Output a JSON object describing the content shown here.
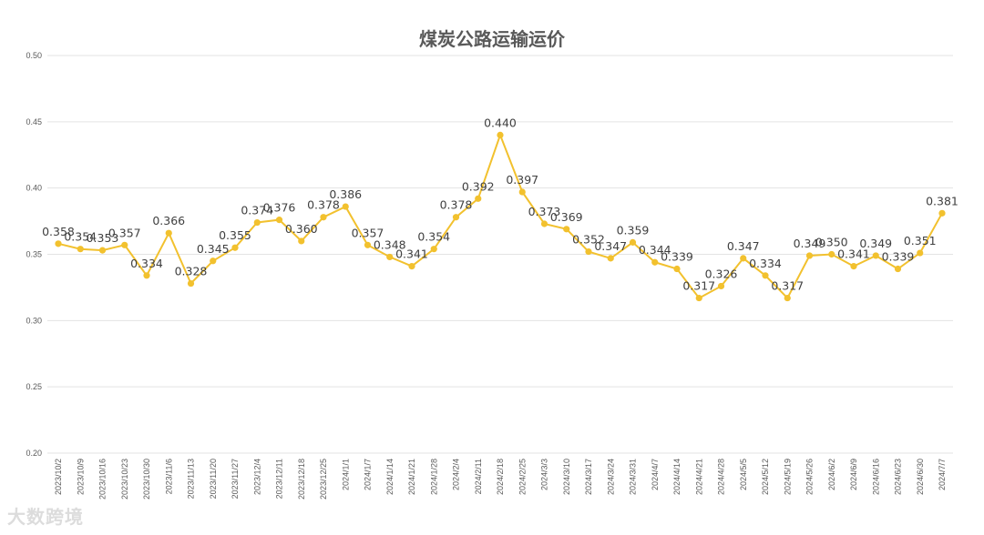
{
  "watermark": "大数跨境",
  "chart_data": {
    "type": "line",
    "title": "煤炭公路运输运价",
    "xlabel": "",
    "ylabel": "",
    "ylim": [
      0.2,
      0.5
    ],
    "yticks": [
      "0.20",
      "0.25",
      "0.30",
      "0.35",
      "0.40",
      "0.45",
      "0.50"
    ],
    "grid": true,
    "legend": "none",
    "colors": {
      "line": "#f2c12e",
      "marker": "#f2c12e",
      "grid": "#e3e3e3",
      "text": "#595959"
    },
    "categories": [
      "2023/10/2",
      "2023/10/9",
      "2023/10/16",
      "2023/10/23",
      "2023/10/30",
      "2023/11/6",
      "2023/11/13",
      "2023/11/20",
      "2023/11/27",
      "2023/12/4",
      "2023/12/11",
      "2023/12/18",
      "2023/12/25",
      "2024/1/1",
      "2024/1/7",
      "2024/1/14",
      "2024/1/21",
      "2024/1/28",
      "2024/2/4",
      "2024/2/11",
      "2024/2/18",
      "2024/2/25",
      "2024/3/3",
      "2024/3/10",
      "2024/3/17",
      "2024/3/24",
      "2024/3/31",
      "2024/4/7",
      "2024/4/14",
      "2024/4/21",
      "2024/4/28",
      "2024/5/5",
      "2024/5/12",
      "2024/5/19",
      "2024/5/26",
      "2024/6/2",
      "2024/6/9",
      "2024/6/16",
      "2024/6/23",
      "2024/6/30",
      "2024/7/7"
    ],
    "values": [
      0.358,
      0.354,
      0.353,
      0.357,
      0.334,
      0.366,
      0.328,
      0.345,
      0.355,
      0.374,
      0.376,
      0.36,
      0.378,
      0.386,
      0.357,
      0.348,
      0.341,
      0.354,
      0.378,
      0.392,
      0.44,
      0.397,
      0.373,
      0.369,
      0.352,
      0.347,
      0.359,
      0.344,
      0.339,
      0.317,
      0.326,
      0.347,
      0.334,
      0.317,
      0.349,
      0.35,
      0.341,
      0.349,
      0.339,
      0.351,
      0.381
    ],
    "data_labels": [
      "0.358",
      "0.354",
      "0.353",
      "0.357",
      "0.334",
      "0.366",
      "0.328",
      "0.345",
      "0.355",
      "0.374",
      "0.376",
      "0.360",
      "0.378",
      "0.386",
      "0.357",
      "0.348",
      "0.341",
      "0.354",
      "0.378",
      "0.392",
      "0.440",
      "0.397",
      "0.373",
      "0.369",
      "0.352",
      "0.347",
      "0.359",
      "0.344",
      "0.339",
      "0.317",
      "0.326",
      "0.347",
      "0.334",
      "0.317",
      "0.349",
      "0.350",
      "0.341",
      "0.349",
      "0.339",
      "0.351",
      "0.381"
    ]
  }
}
